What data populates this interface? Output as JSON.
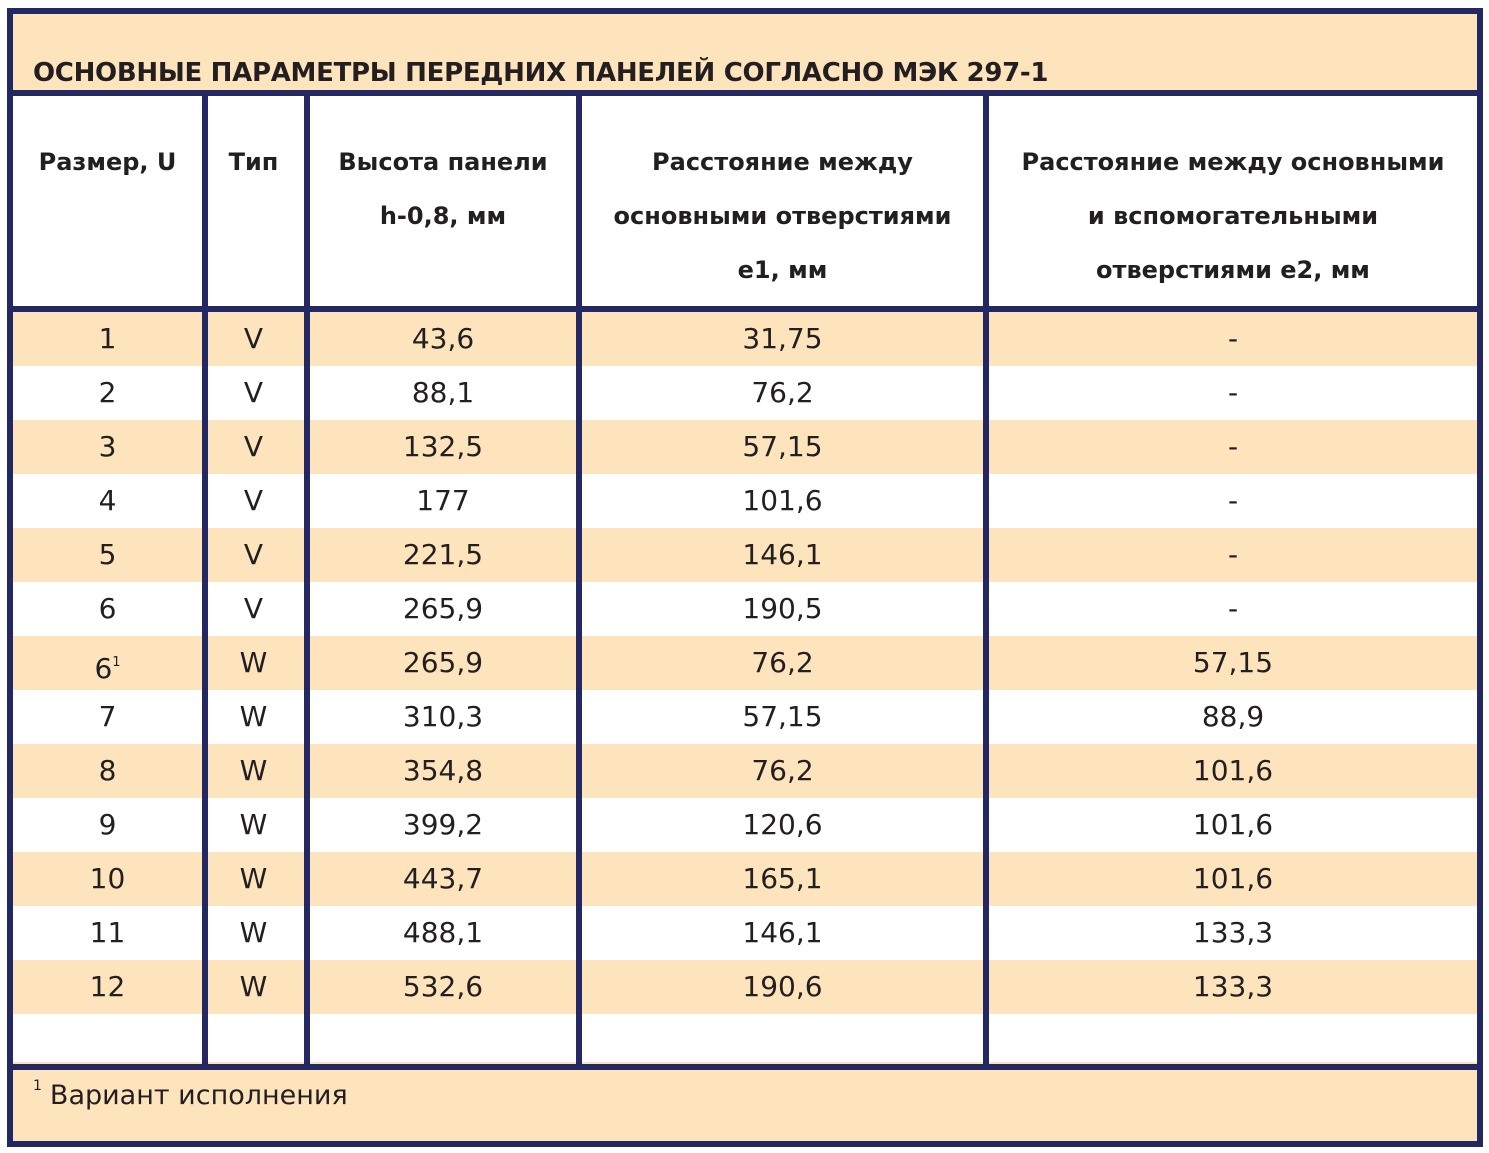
{
  "title": "ОСНОВНЫЕ ПАРАМЕТРЫ ПЕРЕДНИХ ПАНЕЛЕЙ СОГЛАСНО МЭК 297-1",
  "headers": [
    [
      "Размер, U"
    ],
    [
      "Тип"
    ],
    [
      "Высота панели",
      "h-0,8, мм"
    ],
    [
      "Расстояние между",
      "основными отверстиями",
      "e1, мм"
    ],
    [
      "Расстояние между основными",
      "и вспомогательными",
      "отверстиями e2, мм"
    ]
  ],
  "rows": [
    {
      "size": "1",
      "sup": "",
      "type": "V",
      "height": "43,6",
      "e1": "31,75",
      "e2": "-"
    },
    {
      "size": "2",
      "sup": "",
      "type": "V",
      "height": "88,1",
      "e1": "76,2",
      "e2": "-"
    },
    {
      "size": "3",
      "sup": "",
      "type": "V",
      "height": "132,5",
      "e1": "57,15",
      "e2": "-"
    },
    {
      "size": "4",
      "sup": "",
      "type": "V",
      "height": "177",
      "e1": "101,6",
      "e2": "-"
    },
    {
      "size": "5",
      "sup": "",
      "type": "V",
      "height": "221,5",
      "e1": "146,1",
      "e2": "-"
    },
    {
      "size": "6",
      "sup": "",
      "type": "V",
      "height": "265,9",
      "e1": "190,5",
      "e2": "-"
    },
    {
      "size": "6",
      "sup": "1",
      "type": "W",
      "height": "265,9",
      "e1": "76,2",
      "e2": "57,15"
    },
    {
      "size": "7",
      "sup": "",
      "type": "W",
      "height": "310,3",
      "e1": "57,15",
      "e2": "88,9"
    },
    {
      "size": "8",
      "sup": "",
      "type": "W",
      "height": "354,8",
      "e1": "76,2",
      "e2": "101,6"
    },
    {
      "size": "9",
      "sup": "",
      "type": "W",
      "height": "399,2",
      "e1": "120,6",
      "e2": "101,6"
    },
    {
      "size": "10",
      "sup": "",
      "type": "W",
      "height": "443,7",
      "e1": "165,1",
      "e2": "101,6"
    },
    {
      "size": "11",
      "sup": "",
      "type": "W",
      "height": "488,1",
      "e1": "146,1",
      "e2": "133,3"
    },
    {
      "size": "12",
      "sup": "",
      "type": "W",
      "height": "532,6",
      "e1": "190,6",
      "e2": "133,3"
    }
  ],
  "footnote": {
    "mark": "1",
    "text": "Вариант исполнения"
  },
  "colors": {
    "border": "#232762",
    "stripe": "#fde4bd",
    "background": "#ffffff",
    "text": "#231f20"
  }
}
